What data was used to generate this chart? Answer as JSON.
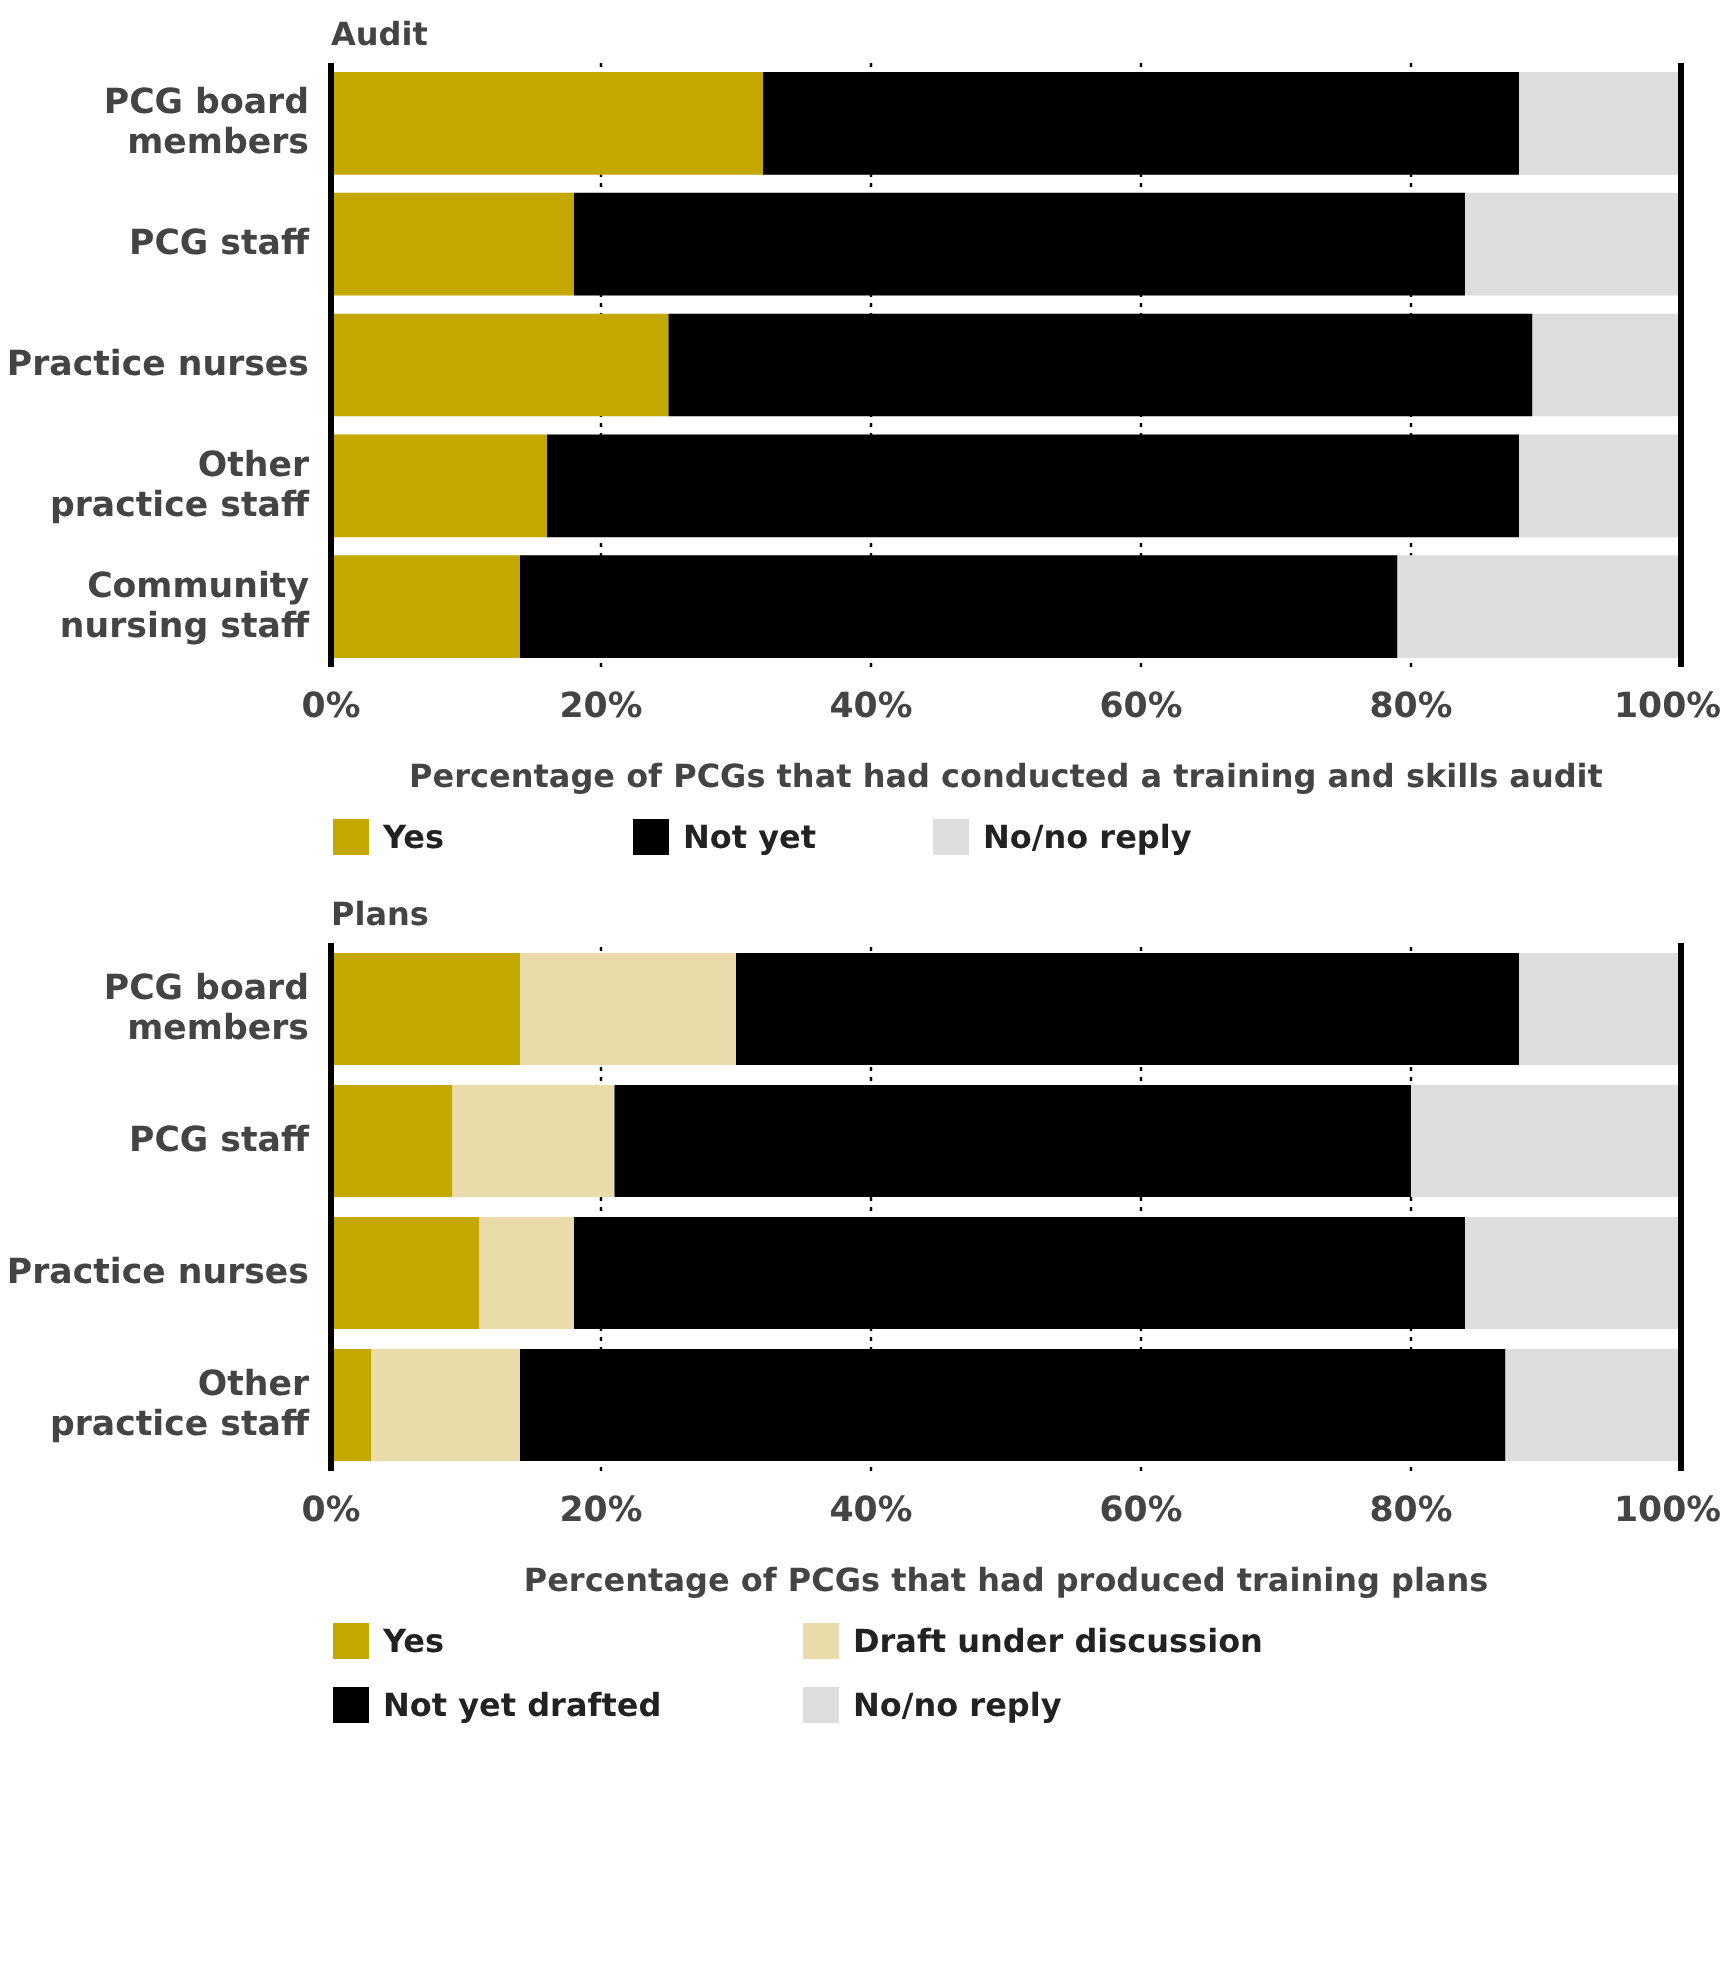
{
  "chart_data": [
    {
      "type": "bar",
      "orientation": "horizontal",
      "stacked": true,
      "title": "Audit",
      "xlabel": "Percentage of PCGs that had conducted a training and skills audit",
      "categories": [
        "PCG board members",
        "PCG staff",
        "Practice nurses",
        "Other practice staff",
        "Community nursing staff"
      ],
      "series": [
        {
          "name": "Yes",
          "color": "#c4a800",
          "values": [
            32,
            18,
            25,
            16,
            14
          ]
        },
        {
          "name": "Not yet",
          "color": "#000000",
          "values": [
            56,
            66,
            64,
            72,
            65
          ]
        },
        {
          "name": "No/no reply",
          "color": "#dddddd",
          "values": [
            12,
            16,
            11,
            12,
            21
          ]
        }
      ],
      "xlim": [
        0,
        100
      ],
      "xticks": [
        {
          "value": 0,
          "label": "0%"
        },
        {
          "value": 20,
          "label": "20%"
        },
        {
          "value": 40,
          "label": "40%"
        },
        {
          "value": 60,
          "label": "60%"
        },
        {
          "value": 80,
          "label": "80%"
        },
        {
          "value": 100,
          "label": "100%"
        }
      ],
      "grid": "x",
      "legend": "bottom"
    },
    {
      "type": "bar",
      "orientation": "horizontal",
      "stacked": true,
      "title": "Plans",
      "xlabel": "Percentage of PCGs that had produced training plans",
      "categories": [
        "PCG board members",
        "PCG staff",
        "Practice nurses",
        "Other practice staff"
      ],
      "series": [
        {
          "name": "Yes",
          "color": "#c4a800",
          "values": [
            14,
            9,
            11,
            3
          ]
        },
        {
          "name": "Draft under discussion",
          "color": "#eadcaa",
          "values": [
            16,
            12,
            7,
            11
          ]
        },
        {
          "name": "Not yet drafted",
          "color": "#000000",
          "values": [
            58,
            59,
            66,
            73
          ]
        },
        {
          "name": "No/no reply",
          "color": "#dddddd",
          "values": [
            12,
            20,
            16,
            13
          ]
        }
      ],
      "xlim": [
        0,
        100
      ],
      "xticks": [
        {
          "value": 0,
          "label": "0%"
        },
        {
          "value": 20,
          "label": "20%"
        },
        {
          "value": 40,
          "label": "40%"
        },
        {
          "value": 60,
          "label": "60%"
        },
        {
          "value": 80,
          "label": "80%"
        },
        {
          "value": 100,
          "label": "100%"
        }
      ],
      "grid": "x",
      "legend": "bottom"
    }
  ]
}
